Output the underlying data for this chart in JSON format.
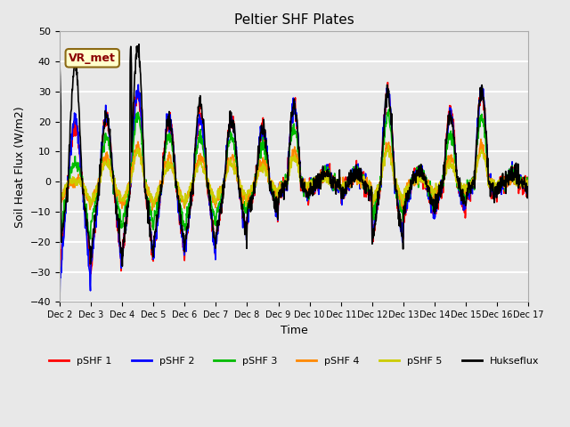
{
  "title": "Peltier SHF Plates",
  "xlabel": "Time",
  "ylabel": "Soil Heat Flux (W/m2)",
  "ylim": [
    -40,
    50
  ],
  "background_color": "#e8e8e8",
  "plot_bg_color": "#e8e8e8",
  "grid_color": "white",
  "series_colors": {
    "pSHF 1": "#ff0000",
    "pSHF 2": "#0000ff",
    "pSHF 3": "#00bb00",
    "pSHF 4": "#ff8800",
    "pSHF 5": "#cccc00",
    "Hukseflux": "#000000"
  },
  "xtick_labels": [
    "Dec 2",
    "Dec 3",
    "Dec 4",
    "Dec 5",
    "Dec 6",
    "Dec 7",
    "Dec 8",
    "Dec 9",
    "Dec 10",
    "Dec 11",
    "Dec 12",
    "Dec 13",
    "Dec 14",
    "Dec 15",
    "Dec 16",
    "Dec 17"
  ],
  "annotation_text": "VR_met",
  "annotation_color": "#8B0000",
  "annotation_bg": "#ffffcc",
  "annotation_edge": "#8B6914",
  "linewidth": 1.2,
  "figsize": [
    6.4,
    4.8
  ],
  "dpi": 100
}
